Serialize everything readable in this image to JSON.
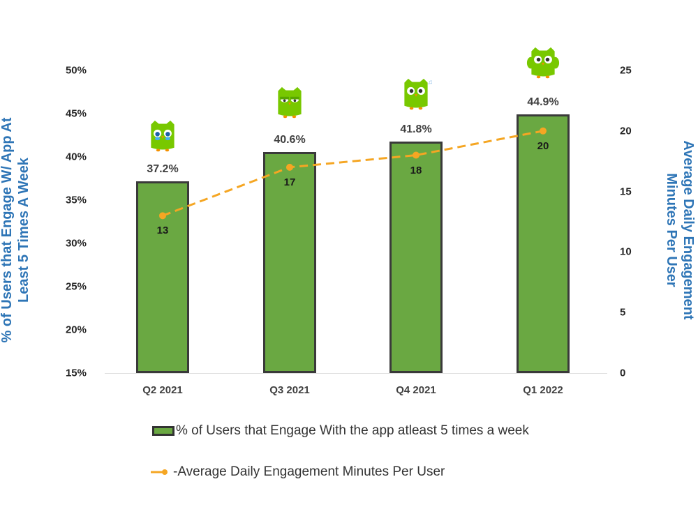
{
  "chart_data": {
    "type": "bar",
    "title": "",
    "categories": [
      "Q2 2021",
      "Q3 2021",
      "Q4 2021",
      "Q1 2022"
    ],
    "series": [
      {
        "name": "% of Users that Engage With the app atleast 5 times a week",
        "type": "bar",
        "axis": "left",
        "values": [
          37.2,
          40.6,
          41.8,
          44.9
        ],
        "labels": [
          "37.2%",
          "40.6%",
          "41.8%",
          "44.9%"
        ],
        "color": "#6aa842",
        "border_color": "#3a3a3a"
      },
      {
        "name": "Average Daily Engagement Minutes Per User",
        "type": "line",
        "axis": "right",
        "style": "dashed",
        "values": [
          13,
          17,
          18,
          20
        ],
        "labels": [
          "13",
          "17",
          "18",
          "20"
        ],
        "color": "#f5a623"
      }
    ],
    "xlabel": "",
    "ylabel": "% of Users that Engage W/ App At Least 5 Times A Week",
    "ylabel_right": "Average Daily Engagement Minutes Per User",
    "ylim": [
      15,
      50
    ],
    "ylim_right": [
      0,
      25
    ],
    "yticks": [
      "50%",
      "45%",
      "40%",
      "35%",
      "30%",
      "25%",
      "20%",
      "15%"
    ],
    "yticks_right": [
      "25",
      "20",
      "15",
      "10",
      "5",
      "0"
    ],
    "grid": false,
    "legend_position": "bottom"
  },
  "axes": {
    "left_label_line1": "% of Users that Engage W/ App At",
    "left_label_line2": "Least 5 Times A Week",
    "right_label_line1": "Average Daily Engagement",
    "right_label_line2": "Minutes  Per User"
  },
  "legend": {
    "bar_label": "% of Users that Engage With the app atleast 5 times a week",
    "line_label": "-Average Daily Engagement Minutes Per User"
  },
  "decorations": {
    "mascot_icons": [
      "owl-crying",
      "owl-unamused",
      "owl-dancing-music",
      "owl-flying"
    ]
  }
}
